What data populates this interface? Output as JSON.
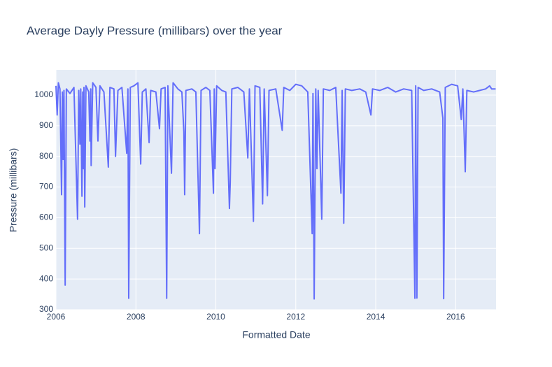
{
  "chart_data": {
    "type": "line",
    "title": "Average Dayly Pressure (millibars) over the year",
    "x_label": "Formatted Date",
    "y_label": "Pressure (millibars)",
    "xlim": [
      2006,
      2017.01
    ],
    "xticks": [
      2006,
      2008,
      2010,
      2012,
      2014,
      2016
    ],
    "ylim": [
      300,
      1082
    ],
    "yticks": [
      300,
      400,
      500,
      600,
      700,
      800,
      900,
      1000
    ],
    "grid": true,
    "series": [
      {
        "color": "#636efa",
        "x": [
          2006.0,
          2006.03,
          2006.06,
          2006.1,
          2006.14,
          2006.16,
          2006.18,
          2006.2,
          2006.23,
          2006.26,
          2006.35,
          2006.45,
          2006.54,
          2006.57,
          2006.6,
          2006.62,
          2006.65,
          2006.67,
          2006.69,
          2006.7,
          2006.72,
          2006.75,
          2006.82,
          2006.85,
          2006.87,
          2006.88,
          2006.92,
          2007.0,
          2007.05,
          2007.1,
          2007.2,
          2007.31,
          2007.35,
          2007.45,
          2007.49,
          2007.55,
          2007.65,
          2007.77,
          2007.8,
          2007.82,
          2007.86,
          2007.95,
          2008.05,
          2008.12,
          2008.16,
          2008.25,
          2008.33,
          2008.37,
          2008.5,
          2008.59,
          2008.63,
          2008.73,
          2008.77,
          2008.8,
          2008.89,
          2008.93,
          2009.05,
          2009.15,
          2009.2,
          2009.22,
          2009.25,
          2009.4,
          2009.5,
          2009.59,
          2009.63,
          2009.75,
          2009.85,
          2009.94,
          2009.96,
          2009.98,
          2010.02,
          2010.15,
          2010.25,
          2010.34,
          2010.36,
          2010.4,
          2010.55,
          2010.7,
          2010.8,
          2010.84,
          2010.94,
          2010.98,
          2011.1,
          2011.17,
          2011.21,
          2011.29,
          2011.33,
          2011.5,
          2011.66,
          2011.7,
          2011.85,
          2012.0,
          2012.15,
          2012.3,
          2012.41,
          2012.43,
          2012.46,
          2012.5,
          2012.53,
          2012.56,
          2012.65,
          2012.69,
          2012.85,
          2013.0,
          2013.13,
          2013.16,
          2013.2,
          2013.24,
          2013.4,
          2013.6,
          2013.75,
          2013.88,
          2013.92,
          2014.1,
          2014.3,
          2014.5,
          2014.7,
          2014.9,
          2014.98,
          2015.0,
          2015.02,
          2015.03,
          2015.06,
          2015.2,
          2015.4,
          2015.6,
          2015.68,
          2015.7,
          2015.74,
          2015.9,
          2016.05,
          2016.14,
          2016.18,
          2016.24,
          2016.28,
          2016.45,
          2016.6,
          2016.75,
          2016.85,
          2016.9,
          2017.0
        ],
        "values": [
          1030,
          935,
          1040,
          1020,
          675,
          1010,
          790,
          1015,
          380,
          1020,
          1005,
          1025,
          595,
          1015,
          840,
          1020,
          670,
          1010,
          760,
          1025,
          635,
          1030,
          1010,
          850,
          1020,
          770,
          1040,
          1025,
          850,
          1030,
          1010,
          765,
          1025,
          1020,
          800,
          1015,
          1025,
          810,
          1020,
          337,
          1025,
          1030,
          1040,
          775,
          1010,
          1020,
          845,
          1015,
          1010,
          890,
          1020,
          1025,
          337,
          1030,
          745,
          1040,
          1020,
          1010,
          880,
          675,
          1015,
          1020,
          1010,
          548,
          1015,
          1025,
          1015,
          680,
          1020,
          760,
          1030,
          1015,
          1010,
          630,
          715,
          1020,
          1025,
          1010,
          795,
          1020,
          588,
          1030,
          1025,
          645,
          1020,
          672,
          1015,
          1020,
          885,
          1025,
          1015,
          1035,
          1030,
          1010,
          548,
          1005,
          335,
          1020,
          760,
          1015,
          595,
          1020,
          1015,
          1025,
          680,
          1015,
          582,
          1020,
          1015,
          1020,
          1010,
          935,
          1020,
          1015,
          1025,
          1010,
          1020,
          1015,
          337,
          1030,
          510,
          338,
          1025,
          1015,
          1020,
          1010,
          925,
          336,
          1025,
          1035,
          1030,
          920,
          1020,
          750,
          1015,
          1010,
          1015,
          1020,
          1030,
          1020,
          1020
        ]
      }
    ]
  }
}
